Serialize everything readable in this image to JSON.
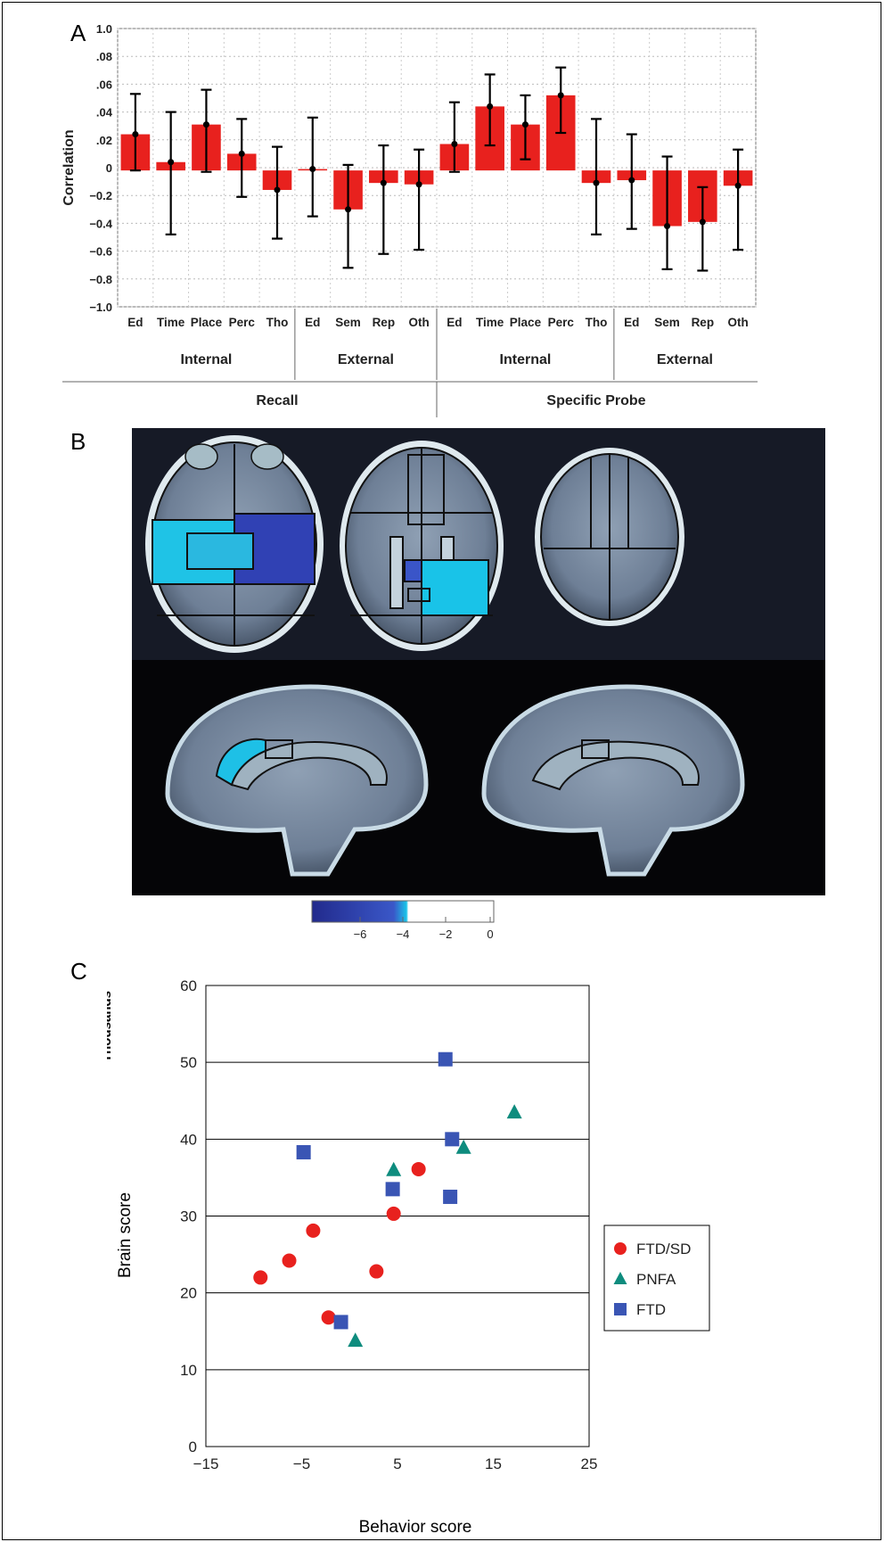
{
  "panels": {
    "a": "A",
    "b": "B",
    "c": "C"
  },
  "chart_a": {
    "type": "bar",
    "ylabel": "Correlation",
    "ytick_labels": [
      "1.0",
      ".08",
      ".06",
      ".04",
      ".02",
      "0",
      "−0.2",
      "−0.4",
      "−0.6",
      "−0.8",
      "−1.0"
    ],
    "categories": [
      "Ed",
      "Time",
      "Place",
      "Perc",
      "Tho",
      "Ed",
      "Sem",
      "Rep",
      "Oth",
      "Ed",
      "Time",
      "Place",
      "Perc",
      "Tho",
      "Ed",
      "Sem",
      "Rep",
      "Oth"
    ],
    "values": [
      0.24,
      0.04,
      0.31,
      0.1,
      -0.16,
      -0.01,
      -0.3,
      -0.11,
      -0.12,
      0.17,
      0.44,
      0.31,
      0.52,
      -0.11,
      -0.09,
      -0.42,
      -0.39,
      -0.13
    ],
    "ci_upper": [
      0.53,
      0.4,
      0.56,
      0.35,
      0.15,
      0.36,
      0.02,
      0.16,
      0.13,
      0.47,
      0.67,
      0.52,
      0.72,
      0.35,
      0.24,
      0.08,
      -0.14,
      0.13
    ],
    "ci_lower": [
      -0.02,
      -0.48,
      -0.03,
      -0.21,
      -0.51,
      -0.35,
      -0.72,
      -0.62,
      -0.59,
      -0.03,
      0.16,
      0.06,
      0.25,
      -0.48,
      -0.44,
      -0.73,
      -0.74,
      -0.59
    ],
    "groups_level1": [
      {
        "label": "Internal",
        "from": 0,
        "to": 4
      },
      {
        "label": "External",
        "from": 5,
        "to": 8
      },
      {
        "label": "Internal",
        "from": 9,
        "to": 13
      },
      {
        "label": "External",
        "from": 14,
        "to": 17
      }
    ],
    "groups_level2": [
      {
        "label": "Recall",
        "from": 0,
        "to": 8
      },
      {
        "label": "Specific Probe",
        "from": 9,
        "to": 17
      }
    ],
    "colors": {
      "bar": "#e8211e",
      "error": "#000000"
    }
  },
  "colorbar": {
    "tick_labels": [
      "−6",
      "−4",
      "−2",
      "0"
    ],
    "colors": {
      "dark": "#222a8c",
      "mid": "#3a57c8",
      "light": "#19c3e8",
      "white": "#ffffff"
    }
  },
  "chart_c": {
    "type": "scatter",
    "xlabel": "Behavior score",
    "ylabel": "Brain score",
    "ylabel_units": "Thousands",
    "xlim": [
      -15,
      25
    ],
    "ylim": [
      0,
      60
    ],
    "xticks": [
      "−15",
      "−5",
      "5",
      "15",
      "25"
    ],
    "yticks": [
      "0",
      "10",
      "20",
      "30",
      "40",
      "50",
      "60"
    ],
    "series": [
      {
        "name": "FTD/SD",
        "marker": "circle",
        "color": "#e8211e",
        "points": [
          [
            -9.3,
            22.0
          ],
          [
            -6.3,
            24.2
          ],
          [
            -3.8,
            28.1
          ],
          [
            -2.2,
            16.8
          ],
          [
            2.8,
            22.8
          ],
          [
            4.6,
            30.3
          ],
          [
            7.2,
            36.1
          ]
        ]
      },
      {
        "name": "PNFA",
        "marker": "triangle",
        "color": "#0e8c7e",
        "points": [
          [
            0.6,
            13.8
          ],
          [
            4.6,
            36.0
          ],
          [
            11.9,
            38.9
          ],
          [
            17.2,
            43.5
          ]
        ]
      },
      {
        "name": "FTD",
        "marker": "square",
        "color": "#3a55b4",
        "points": [
          [
            -4.8,
            38.3
          ],
          [
            -0.9,
            16.2
          ],
          [
            4.5,
            33.5
          ],
          [
            10.0,
            50.4
          ],
          [
            10.5,
            32.5
          ],
          [
            10.7,
            40.0
          ]
        ]
      }
    ]
  }
}
